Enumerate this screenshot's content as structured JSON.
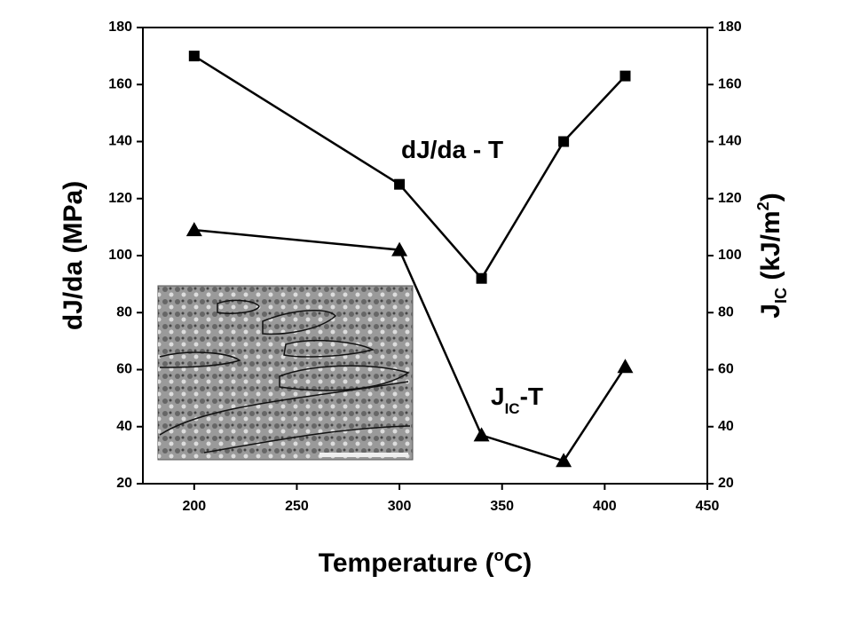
{
  "chart_data": {
    "type": "line",
    "x": [
      200,
      300,
      340,
      380,
      410
    ],
    "xlim": [
      175,
      450
    ],
    "xticks": [
      200,
      250,
      300,
      350,
      400,
      450
    ],
    "ylim": [
      20,
      180
    ],
    "yticks": [
      20,
      40,
      60,
      80,
      100,
      120,
      140,
      160,
      180
    ],
    "y2lim": [
      20,
      180
    ],
    "y2ticks": [
      20,
      40,
      60,
      80,
      100,
      120,
      140,
      160,
      180
    ],
    "xlabel": [
      "Temperature (",
      "o",
      "C)"
    ],
    "ylabel": "dJ/da  (MPa)",
    "y2label": [
      "J",
      "IC",
      " (kJ/m",
      "2",
      ")"
    ],
    "annotations": [
      [
        "dJ/da - T"
      ],
      [
        "J",
        "IC",
        "-T"
      ]
    ],
    "series": [
      {
        "values": [
          170,
          125,
          92,
          140,
          163
        ],
        "color": "#000000",
        "marker": "square"
      },
      {
        "values": [
          109,
          102,
          37,
          28,
          61
        ],
        "color": "#000000",
        "marker": "triangle",
        "axis": "y2"
      }
    ]
  }
}
